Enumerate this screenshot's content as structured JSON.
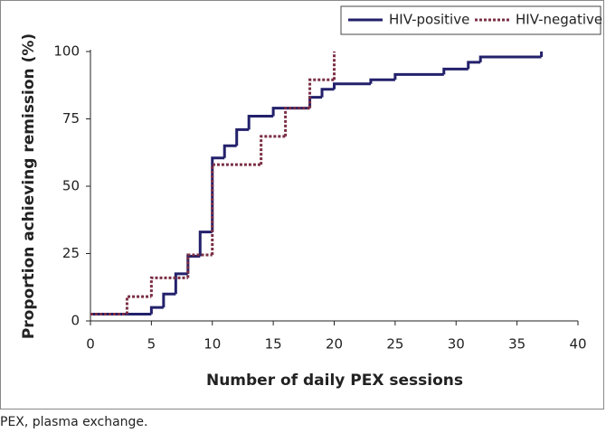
{
  "chart_data": {
    "type": "line",
    "drawstyle": "steps-post",
    "xlabel": "Number of daily PEX sessions",
    "ylabel": "Proportion achieving remission (%)",
    "xlim": [
      0,
      40
    ],
    "xticks": [
      0,
      5,
      10,
      15,
      20,
      25,
      30,
      35,
      40
    ],
    "ylim": [
      0,
      100
    ],
    "yticks": [
      0,
      25,
      50,
      75,
      100
    ],
    "legend": "upper right",
    "series": [
      {
        "name": "HIV-positive",
        "color": "#23216b",
        "style": "solid",
        "x": [
          0,
          5,
          6,
          7,
          8,
          9,
          10,
          11,
          12,
          13,
          15,
          18,
          19,
          20,
          23,
          25,
          29,
          31,
          32,
          37
        ],
        "values": [
          2.5,
          5,
          10,
          17.5,
          24,
          33,
          60.5,
          65,
          71,
          76,
          79,
          83,
          86,
          88,
          89.5,
          91.5,
          93.5,
          96,
          98,
          100
        ]
      },
      {
        "name": "HIV-negative",
        "color": "#7b2f45",
        "style": "dotted",
        "x": [
          0,
          3,
          5,
          8,
          10,
          14,
          16,
          18,
          20
        ],
        "values": [
          2.5,
          9,
          16,
          24.5,
          58,
          68.5,
          79,
          89.5,
          100
        ]
      }
    ]
  },
  "caption": "PEX, plasma exchange."
}
